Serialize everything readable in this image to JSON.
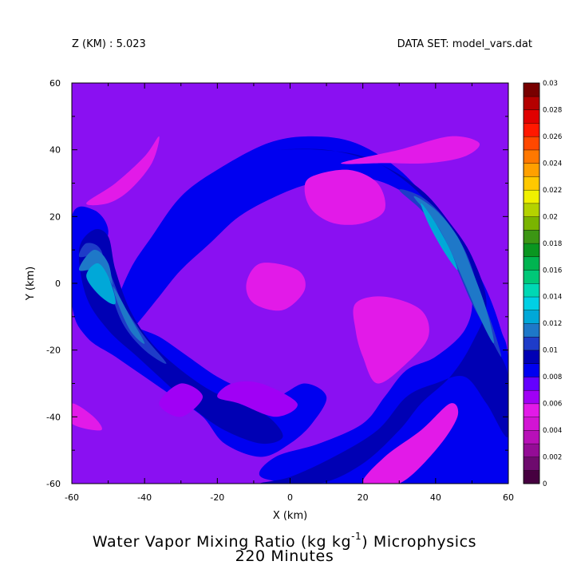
{
  "header": {
    "z_level": "Z (KM) : 5.023",
    "dataset": "DATA SET: model_vars.dat"
  },
  "colors": {
    "frame": "#000000",
    "background": "#ffffff"
  },
  "chart_data": {
    "type": "heatmap",
    "title_line1_prefix": "Water Vapor Mixing Ratio (kg kg",
    "title_line1_sup": "-1",
    "title_line1_suffix": ") Microphysics",
    "title_line2": "220 Minutes",
    "xlabel": "X (km)",
    "ylabel": "Y (km)",
    "xlim": [
      -60,
      60
    ],
    "ylim": [
      -60,
      60
    ],
    "x_ticks": [
      "-60",
      "-40",
      "-20",
      "0",
      "20",
      "40",
      "60"
    ],
    "y_ticks": [
      "60",
      "40",
      "20",
      "0",
      "-20",
      "-40",
      "-60"
    ],
    "x_tick_values": [
      -60,
      -40,
      -20,
      0,
      20,
      40,
      60
    ],
    "y_tick_values": [
      60,
      40,
      20,
      0,
      -20,
      -40,
      -60
    ],
    "colorbar": {
      "levels": [
        0,
        0.002,
        0.004,
        0.006,
        0.008,
        0.01,
        0.012,
        0.014,
        0.016,
        0.018,
        0.02,
        0.022,
        0.024,
        0.026,
        0.028,
        0.03
      ],
      "labels": [
        "0.03",
        "0.028",
        "0.026",
        "0.024",
        "0.022",
        "0.02",
        "0.018",
        "0.016",
        "0.014",
        "0.012",
        "0.01",
        "0.008",
        "0.006",
        "0.004",
        "0.002",
        "0"
      ],
      "colors": [
        "#460040",
        "#6e0a6e",
        "#940c96",
        "#b810b8",
        "#d214d4",
        "#e21ae8",
        "#a000f5",
        "#6400ff",
        "#0000f0",
        "#0000b4",
        "#1e3cc8",
        "#1e78c8",
        "#00a8d8",
        "#00d0e4",
        "#00d8b4",
        "#00c878",
        "#00b450",
        "#0a9620",
        "#3c9614",
        "#7ab400",
        "#b4d200",
        "#f0f000",
        "#ffc800",
        "#ffa000",
        "#ff7800",
        "#ff4800",
        "#ff1800",
        "#e00000",
        "#b40000",
        "#780000"
      ]
    },
    "field_description": "Spiral band structure of water vapor mixing ratio; values mostly 0.004-0.012 kg/kg with a curved band of higher moisture (up to ~0.014) on the eastern and western sides.",
    "regions": [
      {
        "level_index": 7,
        "value": 0.007,
        "points": [
          [
            -60,
            60
          ],
          [
            60,
            60
          ],
          [
            60,
            -60
          ],
          [
            -60,
            -60
          ]
        ]
      },
      {
        "level_index": 8,
        "value": 0.008,
        "points": [
          [
            -6,
            42
          ],
          [
            6,
            44
          ],
          [
            18,
            42
          ],
          [
            30,
            34
          ],
          [
            40,
            22
          ],
          [
            48,
            10
          ],
          [
            54,
            -2
          ],
          [
            58,
            -14
          ],
          [
            60,
            -24
          ],
          [
            60,
            -60
          ],
          [
            30,
            -60
          ],
          [
            6,
            -60
          ],
          [
            -8,
            -58
          ],
          [
            -4,
            -52
          ],
          [
            8,
            -48
          ],
          [
            20,
            -42
          ],
          [
            26,
            -34
          ],
          [
            32,
            -26
          ],
          [
            40,
            -22
          ],
          [
            48,
            -14
          ],
          [
            50,
            -4
          ],
          [
            46,
            8
          ],
          [
            40,
            18
          ],
          [
            30,
            28
          ],
          [
            18,
            32
          ],
          [
            6,
            30
          ],
          [
            -4,
            26
          ],
          [
            -14,
            20
          ],
          [
            -22,
            12
          ],
          [
            -30,
            4
          ],
          [
            -36,
            -4
          ],
          [
            -42,
            -12
          ],
          [
            -46,
            -16
          ],
          [
            -48,
            -8
          ],
          [
            -44,
            4
          ],
          [
            -38,
            14
          ],
          [
            -30,
            26
          ],
          [
            -20,
            34
          ]
        ]
      },
      {
        "level_index": 8,
        "value": 0.008,
        "points": [
          [
            -60,
            -6
          ],
          [
            -56,
            -16
          ],
          [
            -48,
            -22
          ],
          [
            -40,
            -28
          ],
          [
            -32,
            -34
          ],
          [
            -24,
            -40
          ],
          [
            -18,
            -48
          ],
          [
            -8,
            -52
          ],
          [
            0,
            -48
          ],
          [
            6,
            -42
          ],
          [
            10,
            -34
          ],
          [
            4,
            -30
          ],
          [
            -4,
            -34
          ],
          [
            -12,
            -32
          ],
          [
            -20,
            -28
          ],
          [
            -28,
            -22
          ],
          [
            -36,
            -16
          ],
          [
            -44,
            -12
          ],
          [
            -50,
            -4
          ],
          [
            -52,
            6
          ],
          [
            -50,
            16
          ],
          [
            -54,
            22
          ],
          [
            -60,
            20
          ]
        ]
      },
      {
        "level_index": 9,
        "value": 0.0095,
        "points": [
          [
            -4,
            40
          ],
          [
            8,
            40
          ],
          [
            20,
            38
          ],
          [
            30,
            32
          ],
          [
            38,
            24
          ],
          [
            44,
            14
          ],
          [
            48,
            4
          ],
          [
            52,
            -8
          ],
          [
            56,
            -18
          ],
          [
            60,
            -28
          ],
          [
            60,
            -46
          ],
          [
            54,
            -36
          ],
          [
            48,
            -28
          ],
          [
            40,
            -30
          ],
          [
            32,
            -34
          ],
          [
            24,
            -44
          ],
          [
            12,
            -52
          ],
          [
            0,
            -58
          ],
          [
            -8,
            -60
          ],
          [
            8,
            -60
          ],
          [
            20,
            -54
          ],
          [
            30,
            -44
          ],
          [
            36,
            -36
          ],
          [
            44,
            -28
          ],
          [
            50,
            -18
          ],
          [
            54,
            -6
          ],
          [
            50,
            8
          ],
          [
            44,
            18
          ],
          [
            36,
            28
          ],
          [
            24,
            36
          ],
          [
            10,
            40
          ]
        ]
      },
      {
        "level_index": 9,
        "value": 0.0095,
        "points": [
          [
            -58,
            10
          ],
          [
            -54,
            16
          ],
          [
            -50,
            14
          ],
          [
            -48,
            4
          ],
          [
            -44,
            -8
          ],
          [
            -38,
            -18
          ],
          [
            -30,
            -26
          ],
          [
            -22,
            -32
          ],
          [
            -14,
            -36
          ],
          [
            -6,
            -40
          ],
          [
            -2,
            -46
          ],
          [
            -8,
            -48
          ],
          [
            -18,
            -44
          ],
          [
            -26,
            -38
          ],
          [
            -34,
            -30
          ],
          [
            -42,
            -22
          ],
          [
            -50,
            -14
          ],
          [
            -56,
            -4
          ]
        ]
      },
      {
        "level_index": 10,
        "value": 0.0105,
        "points": [
          [
            30,
            28
          ],
          [
            36,
            22
          ],
          [
            42,
            14
          ],
          [
            46,
            4
          ],
          [
            50,
            -6
          ],
          [
            54,
            -14
          ],
          [
            58,
            -22
          ],
          [
            56,
            -14
          ],
          [
            52,
            -2
          ],
          [
            48,
            10
          ],
          [
            42,
            20
          ],
          [
            36,
            26
          ]
        ]
      },
      {
        "level_index": 10,
        "value": 0.0105,
        "points": [
          [
            -58,
            8
          ],
          [
            -56,
            12
          ],
          [
            -52,
            10
          ],
          [
            -50,
            0
          ],
          [
            -46,
            -12
          ],
          [
            -40,
            -20
          ],
          [
            -34,
            -24
          ],
          [
            -40,
            -16
          ],
          [
            -46,
            -6
          ],
          [
            -50,
            4
          ],
          [
            -54,
            8
          ]
        ]
      },
      {
        "level_index": 11,
        "value": 0.0115,
        "points": [
          [
            34,
            26
          ],
          [
            40,
            18
          ],
          [
            44,
            10
          ],
          [
            48,
            0
          ],
          [
            52,
            -10
          ],
          [
            56,
            -18
          ],
          [
            54,
            -8
          ],
          [
            50,
            4
          ],
          [
            46,
            14
          ],
          [
            40,
            22
          ]
        ]
      },
      {
        "level_index": 11,
        "value": 0.0115,
        "points": [
          [
            -58,
            4
          ],
          [
            -54,
            10
          ],
          [
            -50,
            6
          ],
          [
            -48,
            -4
          ],
          [
            -44,
            -14
          ],
          [
            -40,
            -18
          ],
          [
            -44,
            -10
          ],
          [
            -48,
            -2
          ],
          [
            -52,
            4
          ]
        ]
      },
      {
        "level_index": 12,
        "value": 0.013,
        "points": [
          [
            36,
            24
          ],
          [
            40,
            18
          ],
          [
            44,
            10
          ],
          [
            46,
            4
          ],
          [
            42,
            10
          ],
          [
            38,
            18
          ]
        ]
      },
      {
        "level_index": 12,
        "value": 0.013,
        "points": [
          [
            -56,
            2
          ],
          [
            -53,
            6
          ],
          [
            -50,
            2
          ],
          [
            -48,
            -6
          ],
          [
            -52,
            -4
          ]
        ]
      },
      {
        "level_index": 5,
        "value": 0.0055,
        "points": [
          [
            6,
            32
          ],
          [
            16,
            34
          ],
          [
            24,
            30
          ],
          [
            26,
            22
          ],
          [
            20,
            18
          ],
          [
            12,
            18
          ],
          [
            6,
            22
          ],
          [
            4,
            28
          ]
        ]
      },
      {
        "level_index": 5,
        "value": 0.0055,
        "points": [
          [
            14,
            36
          ],
          [
            30,
            40
          ],
          [
            44,
            44
          ],
          [
            52,
            42
          ],
          [
            48,
            38
          ],
          [
            38,
            36
          ],
          [
            26,
            36
          ]
        ]
      },
      {
        "level_index": 5,
        "value": 0.0055,
        "points": [
          [
            -12,
            0
          ],
          [
            -8,
            6
          ],
          [
            2,
            4
          ],
          [
            4,
            -2
          ],
          [
            -2,
            -8
          ],
          [
            -10,
            -6
          ]
        ]
      },
      {
        "level_index": 5,
        "value": 0.0055,
        "points": [
          [
            18,
            -6
          ],
          [
            26,
            -4
          ],
          [
            36,
            -8
          ],
          [
            38,
            -16
          ],
          [
            32,
            -24
          ],
          [
            24,
            -30
          ],
          [
            20,
            -22
          ],
          [
            18,
            -14
          ]
        ]
      },
      {
        "level_index": 5,
        "value": 0.0055,
        "points": [
          [
            -56,
            24
          ],
          [
            -48,
            30
          ],
          [
            -40,
            38
          ],
          [
            -36,
            44
          ],
          [
            -38,
            36
          ],
          [
            -44,
            28
          ],
          [
            -50,
            24
          ]
        ]
      },
      {
        "level_index": 5,
        "value": 0.0055,
        "points": [
          [
            -60,
            -36
          ],
          [
            -54,
            -40
          ],
          [
            -52,
            -44
          ],
          [
            -60,
            -42
          ]
        ]
      },
      {
        "level_index": 5,
        "value": 0.0055,
        "points": [
          [
            30,
            -60
          ],
          [
            40,
            -50
          ],
          [
            46,
            -40
          ],
          [
            44,
            -36
          ],
          [
            36,
            -44
          ],
          [
            26,
            -52
          ],
          [
            20,
            -60
          ]
        ]
      },
      {
        "level_index": 6,
        "value": 0.0065,
        "points": [
          [
            -30,
            -30
          ],
          [
            -24,
            -34
          ],
          [
            -30,
            -40
          ],
          [
            -36,
            -36
          ]
        ]
      },
      {
        "level_index": 6,
        "value": 0.0065,
        "points": [
          [
            -20,
            -34
          ],
          [
            -14,
            -36
          ],
          [
            -4,
            -40
          ],
          [
            2,
            -36
          ],
          [
            -8,
            -30
          ],
          [
            -16,
            -30
          ]
        ]
      }
    ]
  }
}
